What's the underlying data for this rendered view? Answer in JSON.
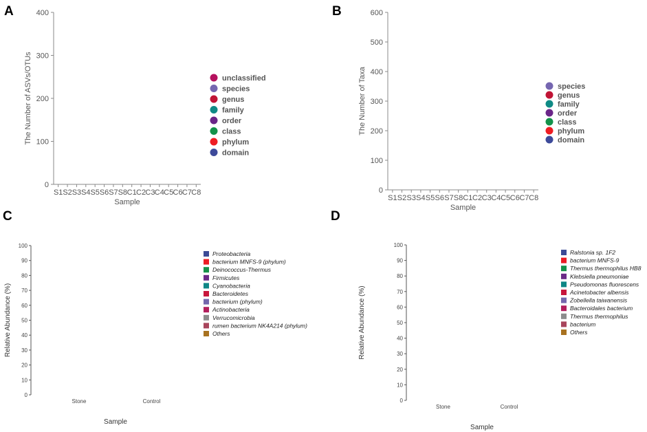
{
  "chart_data": [
    {
      "panel": "A",
      "type": "bar",
      "stacked": true,
      "title": "",
      "xlabel": "Sample",
      "ylabel": "The Number of ASVs/OTUs",
      "ylim": [
        0,
        400
      ],
      "yticks": [
        0,
        100,
        200,
        300,
        400
      ],
      "categories": [
        "S1",
        "S2",
        "S3",
        "S4",
        "S5",
        "S6",
        "S7",
        "S8",
        "C1",
        "C2",
        "C3",
        "C4",
        "C5",
        "C6",
        "C7",
        "C8"
      ],
      "series": [
        {
          "name": "domain",
          "color": "#3d4a9a",
          "values": [
            0,
            0,
            0,
            0,
            0,
            0,
            0,
            0,
            0,
            0,
            0,
            0,
            0,
            0,
            0,
            0
          ]
        },
        {
          "name": "phylum",
          "color": "#ee1d23",
          "values": [
            0,
            0,
            0,
            0,
            0,
            0,
            0,
            0,
            0,
            0,
            0,
            0,
            0,
            0,
            0,
            0
          ]
        },
        {
          "name": "class",
          "color": "#13924a",
          "values": [
            0,
            0,
            0,
            0,
            0,
            0,
            0,
            0,
            0,
            0,
            0,
            0,
            0,
            0,
            0,
            0
          ]
        },
        {
          "name": "order",
          "color": "#6a2588",
          "values": [
            0,
            0,
            0,
            0,
            0,
            0,
            0,
            0,
            0,
            0,
            0,
            0,
            0,
            0,
            0,
            0
          ]
        },
        {
          "name": "family",
          "color": "#0f8a85",
          "values": [
            0,
            0,
            0,
            0,
            0,
            0,
            0,
            0,
            0,
            0,
            0,
            0,
            0,
            0,
            0,
            0
          ]
        },
        {
          "name": "genus",
          "color": "#c01435",
          "values": [
            0,
            0,
            0,
            0,
            0,
            0,
            0,
            0,
            0,
            0,
            0,
            0,
            0,
            0,
            0,
            0
          ]
        },
        {
          "name": "species",
          "color": "#7566b0",
          "values": [
            0,
            0,
            0,
            0,
            0,
            0,
            0,
            0,
            0,
            0,
            0,
            0,
            0,
            0,
            0,
            0
          ]
        },
        {
          "name": "unclassified",
          "color": "#b5115e",
          "values": [
            0,
            0,
            0,
            0,
            0,
            0,
            0,
            0,
            0,
            0,
            0,
            0,
            0,
            0,
            0,
            0
          ]
        }
      ],
      "legend_order": [
        "unclassified",
        "species",
        "genus",
        "family",
        "order",
        "class",
        "phylum",
        "domain"
      ],
      "legend_position": "right"
    },
    {
      "panel": "B",
      "type": "bar",
      "stacked": true,
      "title": "",
      "xlabel": "Sample",
      "ylabel": "The Number of Taxa",
      "ylim": [
        0,
        600
      ],
      "yticks": [
        0,
        100,
        200,
        300,
        400,
        500,
        600
      ],
      "categories": [
        "S1",
        "S2",
        "S3",
        "S4",
        "S5",
        "S6",
        "S7",
        "S8",
        "C1",
        "C2",
        "C3",
        "C4",
        "C5",
        "C6",
        "C7",
        "C8"
      ],
      "series": [
        {
          "name": "domain",
          "color": "#3d4a9a",
          "values": [
            0,
            0,
            0,
            0,
            0,
            0,
            0,
            0,
            0,
            0,
            0,
            0,
            0,
            0,
            0,
            0
          ]
        },
        {
          "name": "phylum",
          "color": "#ee1d23",
          "values": [
            0,
            0,
            0,
            0,
            0,
            0,
            0,
            0,
            0,
            0,
            0,
            0,
            0,
            0,
            0,
            0
          ]
        },
        {
          "name": "class",
          "color": "#13924a",
          "values": [
            0,
            0,
            0,
            0,
            0,
            0,
            0,
            0,
            0,
            0,
            0,
            0,
            0,
            0,
            0,
            0
          ]
        },
        {
          "name": "order",
          "color": "#6a2588",
          "values": [
            0,
            0,
            0,
            0,
            0,
            0,
            0,
            0,
            0,
            0,
            0,
            0,
            0,
            0,
            0,
            0
          ]
        },
        {
          "name": "family",
          "color": "#0f8a85",
          "values": [
            0,
            0,
            0,
            0,
            0,
            0,
            0,
            0,
            0,
            0,
            0,
            0,
            0,
            0,
            0,
            0
          ]
        },
        {
          "name": "genus",
          "color": "#c01435",
          "values": [
            0,
            0,
            0,
            0,
            0,
            0,
            0,
            0,
            0,
            0,
            0,
            0,
            0,
            0,
            0,
            0
          ]
        },
        {
          "name": "species",
          "color": "#7566b0",
          "values": [
            0,
            0,
            0,
            0,
            0,
            0,
            0,
            0,
            0,
            0,
            0,
            0,
            0,
            0,
            0,
            0
          ]
        }
      ],
      "legend_order": [
        "species",
        "genus",
        "family",
        "order",
        "class",
        "phylum",
        "domain"
      ],
      "legend_position": "right"
    },
    {
      "panel": "C",
      "type": "bar",
      "stacked": true,
      "title": "",
      "xlabel": "Sample",
      "ylabel": "Relative Abundance (%)",
      "ylim": [
        0,
        100
      ],
      "yticks": [
        0,
        10,
        20,
        30,
        40,
        50,
        60,
        70,
        80,
        90,
        100
      ],
      "categories": [
        "Stone",
        "Control"
      ],
      "series": [
        {
          "name": "Proteobacteria",
          "color": "#3b4a96",
          "values": [
            0,
            0
          ]
        },
        {
          "name": "bacterium MNFS-9 (phylum)",
          "color": "#ec1c24",
          "values": [
            0,
            0
          ]
        },
        {
          "name": "Deinococcus-Thermus",
          "color": "#16914a",
          "values": [
            0,
            0
          ]
        },
        {
          "name": "Firmicutes",
          "color": "#6b2a87",
          "values": [
            0,
            0
          ]
        },
        {
          "name": "Cyanobacteria",
          "color": "#0e8786",
          "values": [
            0,
            0
          ]
        },
        {
          "name": "Bacteroidetes",
          "color": "#c8163c",
          "values": [
            0,
            0
          ]
        },
        {
          "name": "bacterium (phylum)",
          "color": "#7467ad",
          "values": [
            0,
            0
          ]
        },
        {
          "name": "Actinobacteria",
          "color": "#b21e5c",
          "values": [
            0,
            0
          ]
        },
        {
          "name": "Verrucomicrobia",
          "color": "#8c8c8c",
          "values": [
            0,
            0
          ]
        },
        {
          "name": "rumen bacterium NK4A214 (phylum)",
          "color": "#a8455c",
          "values": [
            0,
            0
          ]
        },
        {
          "name": "Others",
          "color": "#a87220",
          "values": [
            0,
            0
          ]
        }
      ],
      "legend_position": "right"
    },
    {
      "panel": "D",
      "type": "bar",
      "stacked": true,
      "title": "",
      "xlabel": "Sample",
      "ylabel": "Relative Abundance (%)",
      "ylim": [
        0,
        100
      ],
      "yticks": [
        0,
        10,
        20,
        30,
        40,
        50,
        60,
        70,
        80,
        90,
        100
      ],
      "categories": [
        "Stone",
        "Control"
      ],
      "series": [
        {
          "name": "Ralstonia sp. 1F2",
          "color": "#3b4a96",
          "values": [
            0,
            0
          ]
        },
        {
          "name": "bacterium MNFS-9",
          "color": "#ec1c24",
          "values": [
            0,
            0
          ]
        },
        {
          "name": "Thermus thermophilus HB8",
          "color": "#16914a",
          "values": [
            0,
            0
          ]
        },
        {
          "name": "Klebsiella pneumoniae",
          "color": "#6b2a87",
          "values": [
            0,
            0
          ]
        },
        {
          "name": "Pseudomonas fluorescens",
          "color": "#0e8786",
          "values": [
            0,
            0
          ]
        },
        {
          "name": "Acinetobacter albensis",
          "color": "#c8163c",
          "values": [
            0,
            0
          ]
        },
        {
          "name": "Zobellella taiwanensis",
          "color": "#7467ad",
          "values": [
            0,
            0
          ]
        },
        {
          "name": "Bacteroidales bacterium",
          "color": "#b21e5c",
          "values": [
            0,
            0
          ]
        },
        {
          "name": "Thermus thermophilus",
          "color": "#8c8c8c",
          "values": [
            0,
            0
          ]
        },
        {
          "name": "bacterium",
          "color": "#a8455c",
          "values": [
            0,
            0
          ]
        },
        {
          "name": "Others",
          "color": "#a87220",
          "values": [
            0,
            0
          ]
        }
      ],
      "legend_position": "right"
    }
  ]
}
